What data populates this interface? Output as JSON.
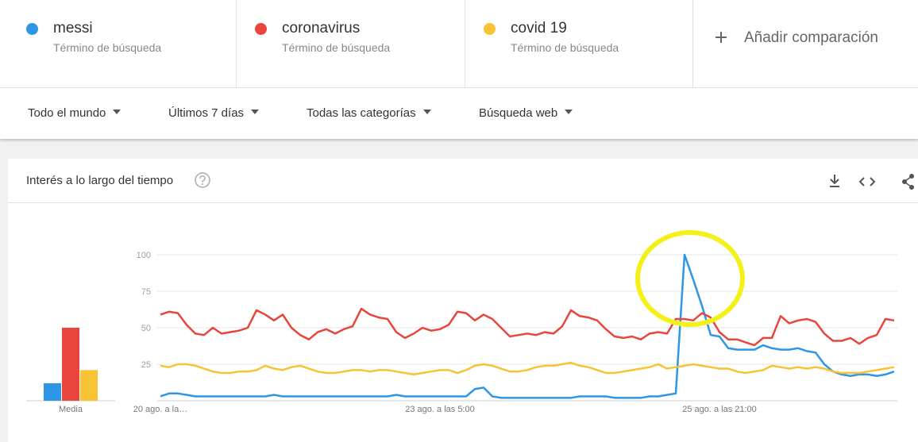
{
  "terms": [
    {
      "name": "messi",
      "subtitle": "Término de búsqueda"
    },
    {
      "name": "coronavirus",
      "subtitle": "Término de búsqueda"
    },
    {
      "name": "covid 19",
      "subtitle": "Término de búsqueda"
    }
  ],
  "add_comparison": "Añadir comparación",
  "filters": [
    "Todo el mundo",
    "Últimos 7 días",
    "Todas las categorías",
    "Búsqueda web"
  ],
  "panel_title": "Interés a lo largo del tiempo",
  "chart_data": {
    "type": "line",
    "categories": [
      "20 ago. a la…",
      null,
      null,
      null,
      null,
      null,
      null,
      null,
      null,
      null,
      null,
      null,
      null,
      null,
      null,
      null,
      null,
      null,
      null,
      null,
      null,
      null,
      null,
      null,
      null,
      null,
      null,
      null,
      null,
      null,
      null,
      null,
      "23 ago. a las 5:00",
      null,
      null,
      null,
      null,
      null,
      null,
      null,
      null,
      null,
      null,
      null,
      null,
      null,
      null,
      null,
      null,
      null,
      null,
      null,
      null,
      null,
      null,
      null,
      null,
      null,
      null,
      null,
      null,
      null,
      null,
      null,
      "25 ago. a las 21:00",
      null,
      null,
      null,
      null,
      null,
      null,
      null,
      null,
      null,
      null,
      null,
      null,
      null,
      null,
      null,
      null,
      null,
      null,
      null,
      null
    ],
    "series": [
      {
        "name": "messi",
        "color": "#2d96e6",
        "values": [
          3,
          5,
          5,
          4,
          3,
          3,
          3,
          3,
          3,
          3,
          3,
          3,
          3,
          4,
          3,
          3,
          3,
          3,
          3,
          3,
          3,
          3,
          3,
          3,
          3,
          3,
          3,
          4,
          3,
          3,
          3,
          3,
          3,
          3,
          3,
          3,
          8,
          9,
          3,
          2,
          2,
          2,
          2,
          2,
          2,
          2,
          2,
          2,
          3,
          3,
          3,
          3,
          2,
          2,
          2,
          2,
          3,
          3,
          4,
          5,
          100,
          83,
          65,
          45,
          44,
          36,
          35,
          35,
          35,
          38,
          36,
          35,
          35,
          36,
          34,
          33,
          25,
          20,
          18,
          17,
          18,
          18,
          17,
          18,
          20
        ]
      },
      {
        "name": "coronavirus",
        "color": "#e8453c",
        "values": [
          59,
          61,
          60,
          52,
          46,
          45,
          50,
          46,
          47,
          48,
          50,
          62,
          59,
          55,
          59,
          50,
          45,
          42,
          47,
          49,
          46,
          49,
          51,
          63,
          59,
          57,
          56,
          47,
          43,
          46,
          50,
          48,
          49,
          52,
          61,
          60,
          55,
          59,
          56,
          50,
          44,
          45,
          46,
          45,
          47,
          46,
          51,
          62,
          58,
          57,
          55,
          49,
          44,
          43,
          44,
          42,
          46,
          47,
          46,
          56,
          56,
          55,
          60,
          57,
          47,
          42,
          42,
          40,
          38,
          43,
          43,
          58,
          53,
          55,
          56,
          54,
          46,
          41,
          41,
          43,
          39,
          43,
          45,
          56,
          55
        ]
      },
      {
        "name": "covid 19",
        "color": "#f7c233",
        "values": [
          24,
          23,
          25,
          25,
          24,
          22,
          20,
          19,
          19,
          20,
          20,
          21,
          24,
          22,
          21,
          23,
          24,
          22,
          20,
          19,
          19,
          20,
          21,
          21,
          20,
          21,
          21,
          20,
          19,
          18,
          19,
          20,
          21,
          21,
          19,
          21,
          24,
          25,
          24,
          22,
          20,
          20,
          21,
          23,
          24,
          24,
          25,
          26,
          24,
          23,
          21,
          19,
          19,
          20,
          21,
          22,
          23,
          25,
          22,
          23,
          24,
          25,
          24,
          23,
          22,
          22,
          20,
          19,
          20,
          21,
          24,
          23,
          22,
          23,
          22,
          23,
          22,
          20,
          19,
          19,
          19,
          20,
          21,
          22,
          23
        ]
      }
    ],
    "ylim": [
      0,
      100
    ],
    "yticks": [
      25,
      50,
      75,
      100
    ],
    "grid": true,
    "averages": {
      "label": "Media",
      "values": [
        12,
        50,
        21
      ]
    }
  }
}
